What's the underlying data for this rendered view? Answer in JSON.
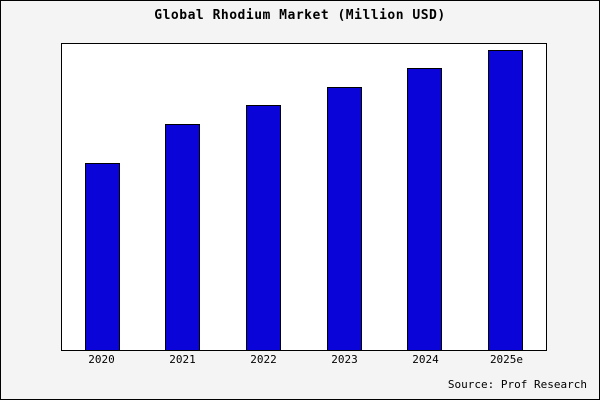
{
  "chart_data": {
    "type": "bar",
    "title": "Global Rhodium Market (Million USD)",
    "categories": [
      "2020",
      "2021",
      "2022",
      "2023",
      "2024",
      "2025e"
    ],
    "values": [
      61,
      74,
      80,
      86,
      92,
      98
    ],
    "xlabel": "",
    "ylabel": "",
    "ylim": [
      0,
      100
    ],
    "bar_color": "#0b04d8",
    "bar_edge_color": "#000000",
    "plot_background": "#ffffff",
    "outer_background": "#f4f4f4",
    "grid": false,
    "legend_position": "none"
  },
  "source": "Source: Prof Research"
}
